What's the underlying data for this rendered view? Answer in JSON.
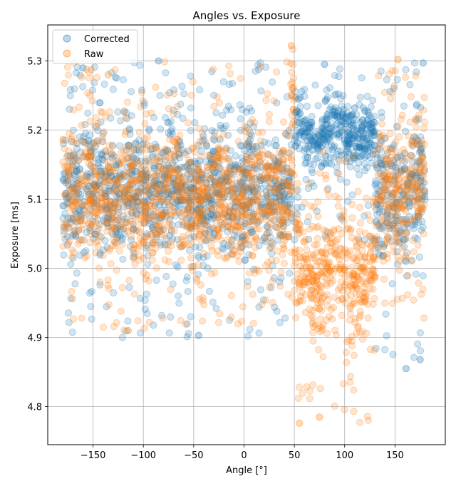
{
  "chart_data": {
    "type": "scatter",
    "title": "Angles vs. Exposure",
    "xlabel": "Angle [°]",
    "ylabel": "Exposure [ms]",
    "xlim": [
      -195,
      200
    ],
    "ylim": [
      4.745,
      5.352
    ],
    "xticks": [
      -150,
      -100,
      -50,
      0,
      50,
      100,
      150
    ],
    "xtick_labels": [
      "−150",
      "−100",
      "−50",
      "0",
      "50",
      "100",
      "150"
    ],
    "yticks": [
      4.8,
      4.9,
      5.0,
      5.1,
      5.2,
      5.3
    ],
    "ytick_labels": [
      "4.8",
      "4.9",
      "5.0",
      "5.1",
      "5.2",
      "5.3"
    ],
    "grid": true,
    "legend_position": "upper-left",
    "series": [
      {
        "name": "Corrected",
        "color": "#1f77b4",
        "marker": "circle",
        "alpha": 0.2,
        "regions": [
          {
            "x_range": [
              -180,
              48
            ],
            "y_center": 5.135,
            "y_core": [
              4.97,
              5.26
            ],
            "y_outliers": [
              4.9,
              5.3
            ]
          },
          {
            "x_range": [
              50,
              130
            ],
            "y_center": 5.18,
            "y_core": [
              5.12,
              5.27
            ],
            "y_outliers": [
              5.04,
              5.3
            ]
          },
          {
            "x_range": [
              130,
              180
            ],
            "y_center": 5.1,
            "y_core": [
              4.95,
              5.26
            ],
            "y_outliers": [
              4.86,
              5.3
            ]
          }
        ],
        "representative_points": [
          {
            "x": -85,
            "y": 5.3
          },
          {
            "x": -160,
            "y": 5.29
          },
          {
            "x": 178,
            "y": 5.297
          },
          {
            "x": -45,
            "y": 4.903
          },
          {
            "x": 161,
            "y": 4.855
          },
          {
            "x": 175,
            "y": 4.868
          },
          {
            "x": 80,
            "y": 5.295
          },
          {
            "x": 110,
            "y": 5.232
          }
        ]
      },
      {
        "name": "Raw",
        "color": "#ff7f0e",
        "marker": "circle",
        "alpha": 0.2,
        "regions": [
          {
            "x_range": [
              -180,
              48
            ],
            "y_center": 5.11,
            "y_core": [
              4.95,
              5.26
            ],
            "y_outliers": [
              4.91,
              5.3
            ]
          },
          {
            "x_range": [
              46,
              50
            ],
            "y_center": 5.23,
            "y_core": [
              5.15,
              5.32
            ],
            "y_outliers": [
              5.1,
              5.322
            ]
          },
          {
            "x_range": [
              50,
              132
            ],
            "y_center": 5.0,
            "y_core": [
              4.85,
              5.14
            ],
            "y_outliers": [
              4.776,
              5.17
            ]
          },
          {
            "x_range": [
              132,
              180
            ],
            "y_center": 5.13,
            "y_core": [
              4.96,
              5.28
            ],
            "y_outliers": [
              4.92,
              5.302
            ]
          }
        ],
        "representative_points": [
          {
            "x": 47,
            "y": 5.322
          },
          {
            "x": 55,
            "y": 4.776
          },
          {
            "x": 75,
            "y": 4.785
          },
          {
            "x": 153,
            "y": 5.302
          },
          {
            "x": -135,
            "y": 5.28
          },
          {
            "x": -115,
            "y": 4.91
          }
        ]
      }
    ]
  }
}
